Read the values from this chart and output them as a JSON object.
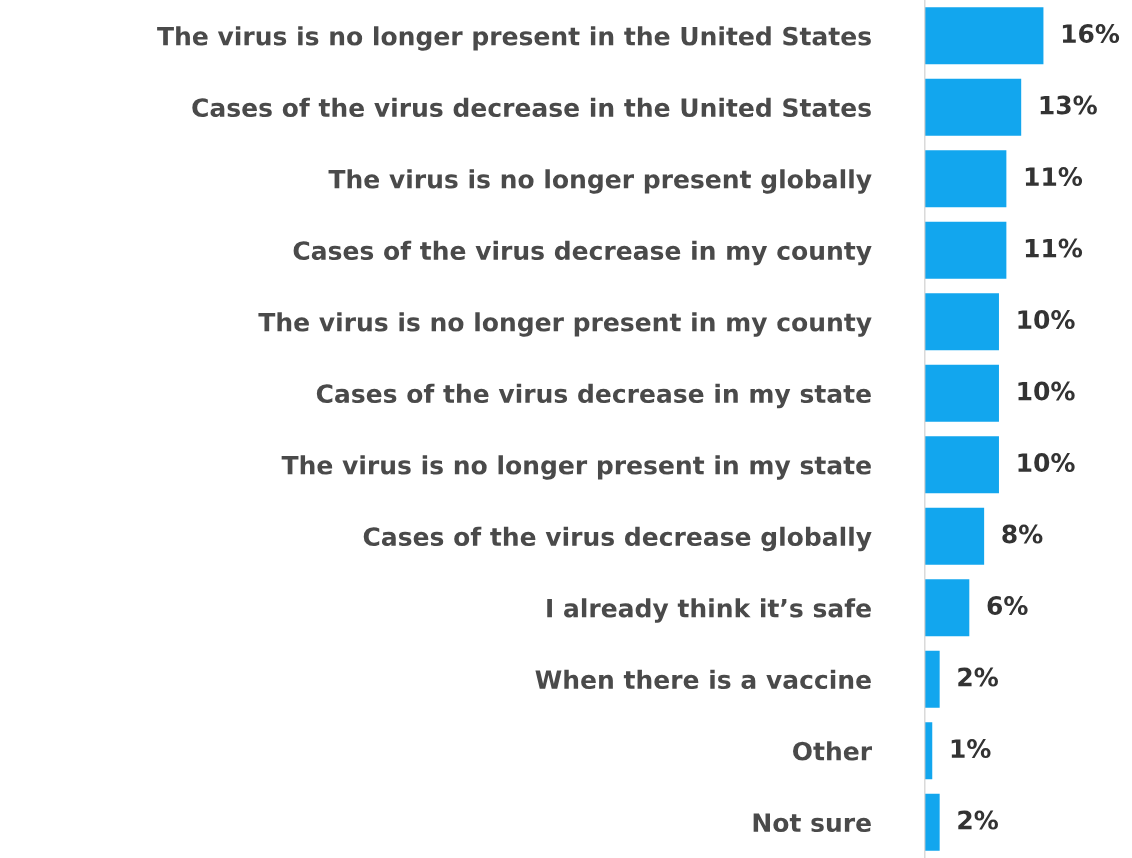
{
  "chart_data": {
    "type": "bar",
    "orientation": "horizontal",
    "categories": [
      "The virus is no longer present in the United States",
      "Cases of the virus decrease in the United States",
      "The virus is no longer present globally",
      "Cases of the virus decrease in my county",
      "The virus is no longer present in my county",
      "Cases of the virus decrease in my state",
      "The virus is no longer present in my state",
      "Cases of the virus decrease globally",
      "I already think it’s safe",
      "When there is a vaccine",
      "Other",
      "Not sure"
    ],
    "values": [
      16,
      13,
      11,
      11,
      10,
      10,
      10,
      8,
      6,
      2,
      1,
      2
    ],
    "value_labels": [
      "16%",
      "13%",
      "11%",
      "11%",
      "10%",
      "10%",
      "10%",
      "8%",
      "6%",
      "2%",
      "1%",
      "2%"
    ],
    "color": "#12a6ee",
    "tick_labels": "y",
    "grid": false,
    "legend": false
  }
}
